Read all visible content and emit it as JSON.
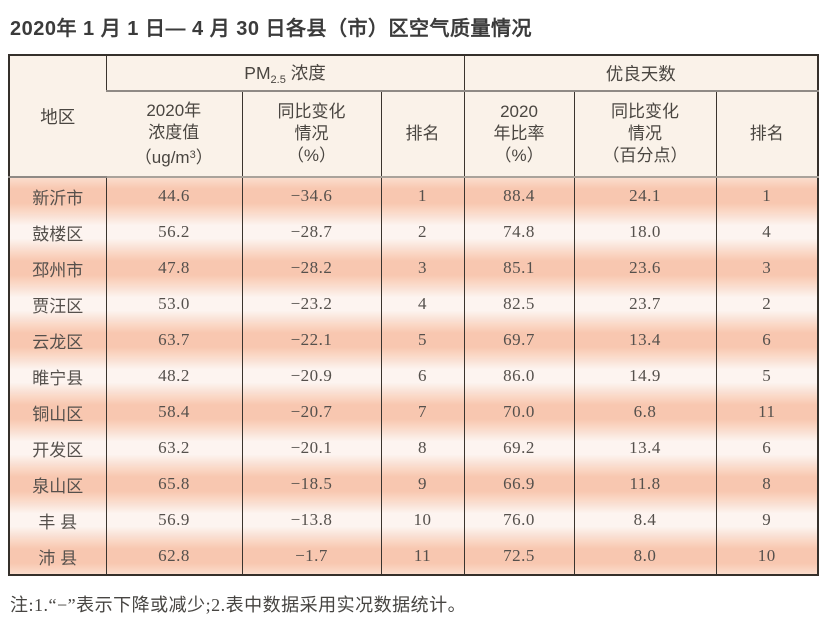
{
  "title": "2020年 1 月 1 日— 4 月 30 日各县（市）区空气质量情况",
  "note": "注:1.“−”表示下降或减少;2.表中数据采用实况数据统计。",
  "colors": {
    "row_odd": "#f8c7b0",
    "row_even": "#fdf4f0",
    "header_bg": "#faf2e9",
    "border_dark": "#35302b",
    "header_underline": "#8f8a85",
    "text": "#55504c"
  },
  "table": {
    "region_header": "地区",
    "pm_group": {
      "prefix": "PM",
      "sub": "2.5",
      "suffix": " 浓度"
    },
    "good_group": "优良天数",
    "pm_value_header": {
      "line1": "2020年",
      "line2": "浓度值",
      "unit_prefix": "（ug/m",
      "unit_sup": "3",
      "unit_suffix": "）"
    },
    "pm_change_header": {
      "line1": "同比变化",
      "line2": "情况",
      "line3": "（%）"
    },
    "pm_rank_header": "排名",
    "good_ratio_header": {
      "line1": "2020",
      "line2": "年比率",
      "line3": "（%）"
    },
    "good_change_header": {
      "line1": "同比变化",
      "line2": "情况",
      "line3": "（百分点）"
    },
    "good_rank_header": "排名",
    "rows": [
      {
        "region": "新沂市",
        "pm_value": "44.6",
        "pm_change": "−34.6",
        "pm_rank": "1",
        "good_ratio": "88.4",
        "good_change": "24.1",
        "good_rank": "1"
      },
      {
        "region": "鼓楼区",
        "pm_value": "56.2",
        "pm_change": "−28.7",
        "pm_rank": "2",
        "good_ratio": "74.8",
        "good_change": "18.0",
        "good_rank": "4"
      },
      {
        "region": "邳州市",
        "pm_value": "47.8",
        "pm_change": "−28.2",
        "pm_rank": "3",
        "good_ratio": "85.1",
        "good_change": "23.6",
        "good_rank": "3"
      },
      {
        "region": "贾汪区",
        "pm_value": "53.0",
        "pm_change": "−23.2",
        "pm_rank": "4",
        "good_ratio": "82.5",
        "good_change": "23.7",
        "good_rank": "2"
      },
      {
        "region": "云龙区",
        "pm_value": "63.7",
        "pm_change": "−22.1",
        "pm_rank": "5",
        "good_ratio": "69.7",
        "good_change": "13.4",
        "good_rank": "6"
      },
      {
        "region": "睢宁县",
        "pm_value": "48.2",
        "pm_change": "−20.9",
        "pm_rank": "6",
        "good_ratio": "86.0",
        "good_change": "14.9",
        "good_rank": "5"
      },
      {
        "region": "铜山区",
        "pm_value": "58.4",
        "pm_change": "−20.7",
        "pm_rank": "7",
        "good_ratio": "70.0",
        "good_change": "6.8",
        "good_rank": "11"
      },
      {
        "region": "开发区",
        "pm_value": "63.2",
        "pm_change": "−20.1",
        "pm_rank": "8",
        "good_ratio": "69.2",
        "good_change": "13.4",
        "good_rank": "6"
      },
      {
        "region": "泉山区",
        "pm_value": "65.8",
        "pm_change": "−18.5",
        "pm_rank": "9",
        "good_ratio": "66.9",
        "good_change": "11.8",
        "good_rank": "8"
      },
      {
        "region": "丰 县",
        "pm_value": "56.9",
        "pm_change": "−13.8",
        "pm_rank": "10",
        "good_ratio": "76.0",
        "good_change": "8.4",
        "good_rank": "9"
      },
      {
        "region": "沛 县",
        "pm_value": "62.8",
        "pm_change": "−1.7",
        "pm_rank": "11",
        "good_ratio": "72.5",
        "good_change": "8.0",
        "good_rank": "10"
      }
    ]
  }
}
